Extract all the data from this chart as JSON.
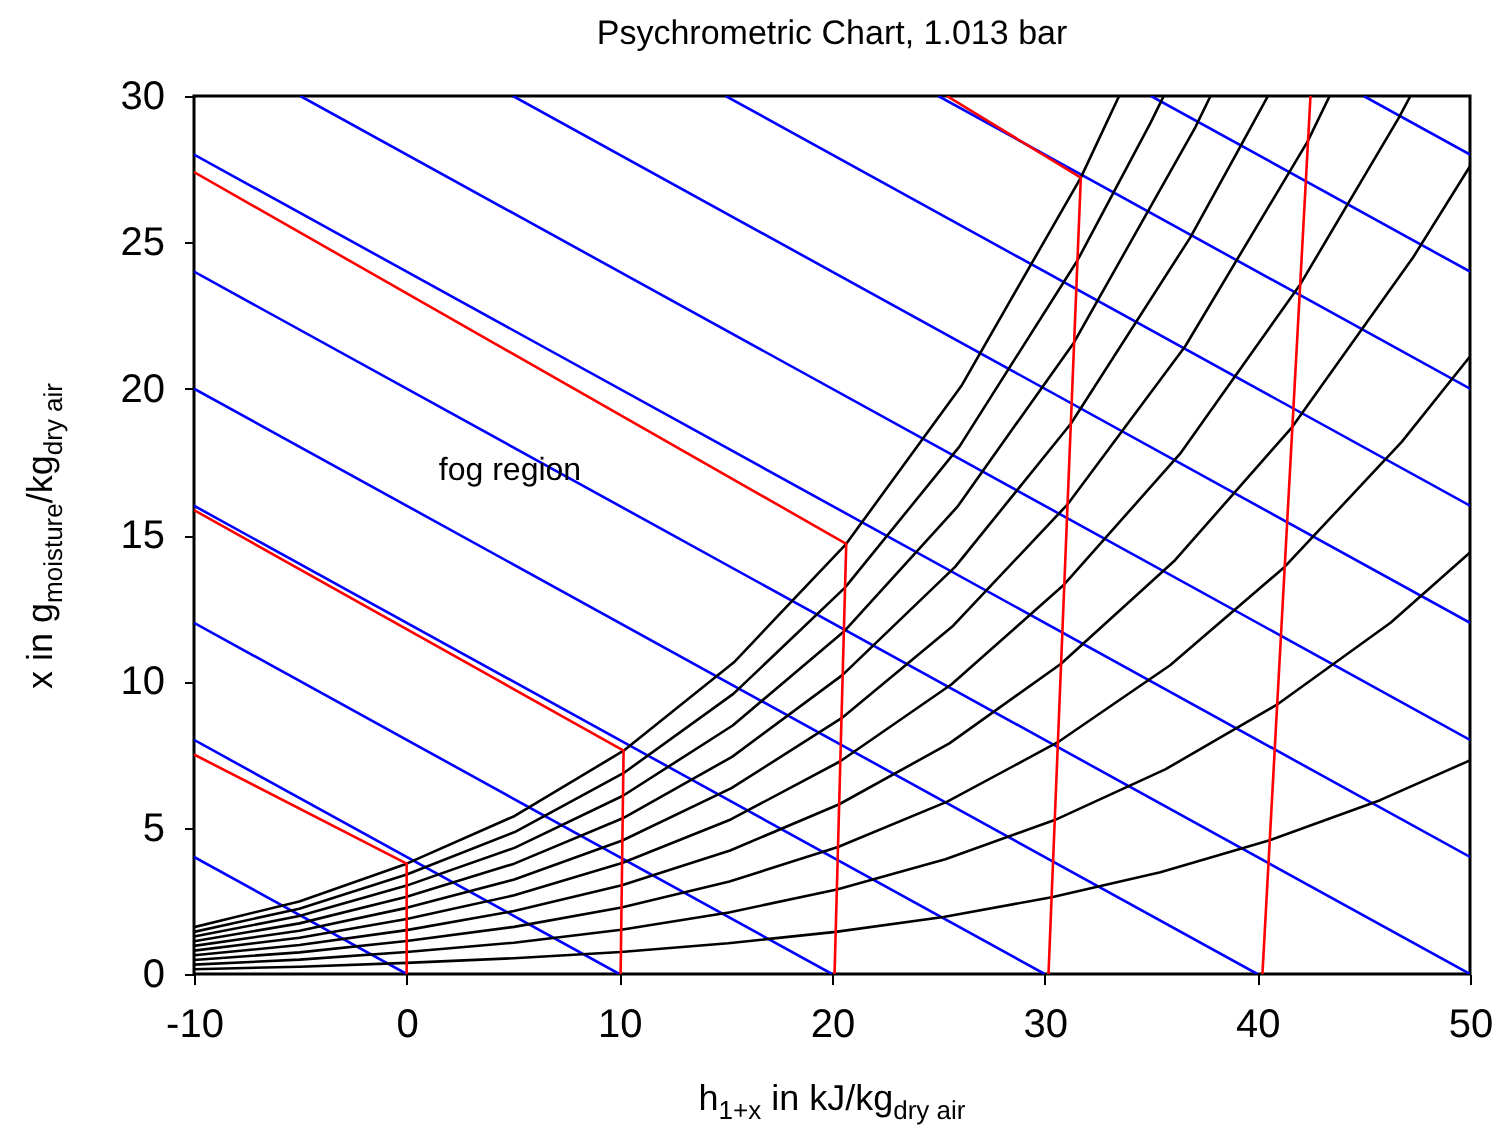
{
  "chart_data": {
    "type": "line",
    "title": "Psychrometric Chart, 1.013 bar",
    "xlabel": "h$_{1+x}$ in kJ/kg$_{dry air}$",
    "ylabel": "x in g$_{moisture}$/kg$_{dry air}$",
    "annotations": [
      "fog region"
    ],
    "xlim": [
      -10,
      50
    ],
    "ylim": [
      0,
      30
    ],
    "xticks": [
      -10,
      0,
      10,
      20,
      30,
      40,
      50
    ],
    "yticks": [
      0,
      5,
      10,
      15,
      20,
      25,
      30
    ],
    "series": [
      {
        "color": "#0000ff",
        "x": [
          -10,
          0
        ],
        "values": [
          4,
          0
        ]
      },
      {
        "color": "#0000ff",
        "x": [
          -10,
          10
        ],
        "values": [
          8,
          0
        ]
      },
      {
        "color": "#0000ff",
        "x": [
          -10,
          20
        ],
        "values": [
          12,
          0
        ]
      },
      {
        "color": "#0000ff",
        "x": [
          -10,
          30
        ],
        "values": [
          16,
          0
        ]
      },
      {
        "color": "#0000ff",
        "x": [
          -10,
          40
        ],
        "values": [
          20,
          0
        ]
      },
      {
        "color": "#0000ff",
        "x": [
          -10,
          50
        ],
        "values": [
          24,
          0
        ]
      },
      {
        "color": "#0000ff",
        "x": [
          -10,
          50
        ],
        "values": [
          28,
          4
        ]
      },
      {
        "color": "#0000ff",
        "x": [
          -5,
          50
        ],
        "values": [
          30,
          8
        ]
      },
      {
        "color": "#0000ff",
        "x": [
          5,
          50
        ],
        "values": [
          30,
          12
        ]
      },
      {
        "color": "#0000ff",
        "x": [
          15,
          50
        ],
        "values": [
          30,
          16
        ]
      },
      {
        "color": "#0000ff",
        "x": [
          25,
          50
        ],
        "values": [
          30,
          20
        ]
      },
      {
        "color": "#0000ff",
        "x": [
          35,
          50
        ],
        "values": [
          30,
          24
        ]
      },
      {
        "color": "#0000ff",
        "x": [
          45,
          50
        ],
        "values": [
          30,
          28
        ]
      },
      {
        "color": "#000000",
        "x": [
          -10,
          -5.05,
          0,
          5.08,
          10.2,
          15.39,
          20.67,
          26.08,
          31.7,
          33.5
        ],
        "values": [
          1.6,
          2.48,
          3.77,
          5.4,
          7.63,
          10.65,
          14.7,
          20.09,
          27.21,
          30
        ]
      },
      {
        "color": "#000000",
        "x": [
          -10,
          -5.05,
          0,
          5.08,
          10.19,
          15.36,
          20.61,
          25.99,
          31.54,
          34.99,
          35.6
        ],
        "values": [
          1.44,
          2.23,
          3.4,
          4.85,
          6.86,
          9.57,
          13.2,
          18.02,
          24.38,
          29.1,
          30
        ]
      },
      {
        "color": "#000000",
        "x": [
          -10,
          -5.05,
          0,
          5.07,
          10.17,
          15.33,
          20.56,
          25.89,
          31.38,
          37.09,
          37.8
        ],
        "values": [
          1.28,
          1.98,
          3.02,
          4.31,
          6.09,
          8.49,
          11.7,
          15.96,
          21.58,
          28.94,
          30
        ]
      },
      {
        "color": "#000000",
        "x": [
          -10,
          -5.04,
          0,
          5.06,
          10.16,
          15.3,
          20.5,
          25.8,
          31.23,
          36.85,
          39.16,
          40.5
        ],
        "values": [
          1.12,
          1.73,
          2.64,
          3.77,
          5.32,
          7.42,
          10.22,
          13.92,
          18.8,
          25.17,
          28.22,
          30
        ]
      },
      {
        "color": "#000000",
        "x": [
          -10,
          -5.04,
          0,
          5.06,
          10.14,
          15.27,
          20.45,
          25.7,
          31.08,
          36.61,
          42.36,
          43.4
        ],
        "values": [
          0.96,
          1.48,
          2.26,
          3.23,
          4.56,
          6.35,
          8.74,
          11.9,
          16.05,
          21.45,
          28.44,
          30
        ]
      },
      {
        "color": "#000000",
        "x": [
          -10,
          -5.04,
          0,
          5.06,
          10.13,
          15.24,
          20.39,
          25.61,
          30.92,
          36.37,
          41.99,
          46.65,
          47.2
        ],
        "values": [
          0.8,
          1.24,
          1.88,
          2.69,
          3.79,
          5.28,
          7.27,
          9.89,
          13.31,
          17.78,
          23.53,
          29.25,
          30
        ]
      },
      {
        "color": "#000000",
        "x": [
          -10,
          -5.04,
          0,
          5.05,
          10.12,
          15.21,
          20.34,
          25.52,
          30.77,
          36.13,
          41.63,
          47.32,
          50
        ],
        "values": [
          0.64,
          0.99,
          1.5,
          2.15,
          3.03,
          4.22,
          5.8,
          7.88,
          10.6,
          14.14,
          18.68,
          24.48,
          27.6
        ]
      },
      {
        "color": "#000000",
        "x": [
          -10,
          -5.04,
          0,
          5.05,
          10.1,
          15.18,
          20.28,
          25.42,
          30.62,
          35.9,
          41.27,
          46.79,
          50
        ],
        "values": [
          0.48,
          0.74,
          1.13,
          1.61,
          2.27,
          3.16,
          4.34,
          5.89,
          7.92,
          10.55,
          13.9,
          18.18,
          21.1
        ]
      },
      {
        "color": "#000000",
        "x": [
          -10,
          -5.03,
          0,
          5.04,
          10.09,
          15.15,
          20.23,
          25.33,
          30.47,
          35.67,
          40.92,
          46.28,
          50
        ],
        "values": [
          0.32,
          0.49,
          0.75,
          1.07,
          1.51,
          2.1,
          2.89,
          3.92,
          5.26,
          6.99,
          9.2,
          12.01,
          14.4
        ]
      },
      {
        "color": "#000000",
        "x": [
          -10,
          -5.03,
          0,
          5.03,
          10.07,
          15.12,
          20.17,
          25.24,
          30.33,
          35.44,
          40.58,
          45.77,
          50
        ],
        "values": [
          0.16,
          0.25,
          0.38,
          0.54,
          0.75,
          1.05,
          1.44,
          1.95,
          2.62,
          3.48,
          4.57,
          5.94,
          7.3
        ]
      },
      {
        "color": "#ff0000",
        "x": [
          0,
          0,
          -10
        ],
        "values": [
          0,
          3.77,
          7.5
        ]
      },
      {
        "color": "#ff0000",
        "x": [
          10.06,
          10.2,
          -10
        ],
        "values": [
          0,
          7.63,
          15.85
        ]
      },
      {
        "color": "#ff0000",
        "x": [
          20.12,
          20.67,
          -10
        ],
        "values": [
          0,
          14.7,
          27.4
        ]
      },
      {
        "color": "#ff0000",
        "x": [
          30.18,
          31.7,
          25.4
        ],
        "values": [
          0,
          27.21,
          30
        ]
      },
      {
        "color": "#ff0000",
        "x": [
          40.24,
          42.5
        ],
        "values": [
          0,
          30
        ]
      }
    ]
  }
}
